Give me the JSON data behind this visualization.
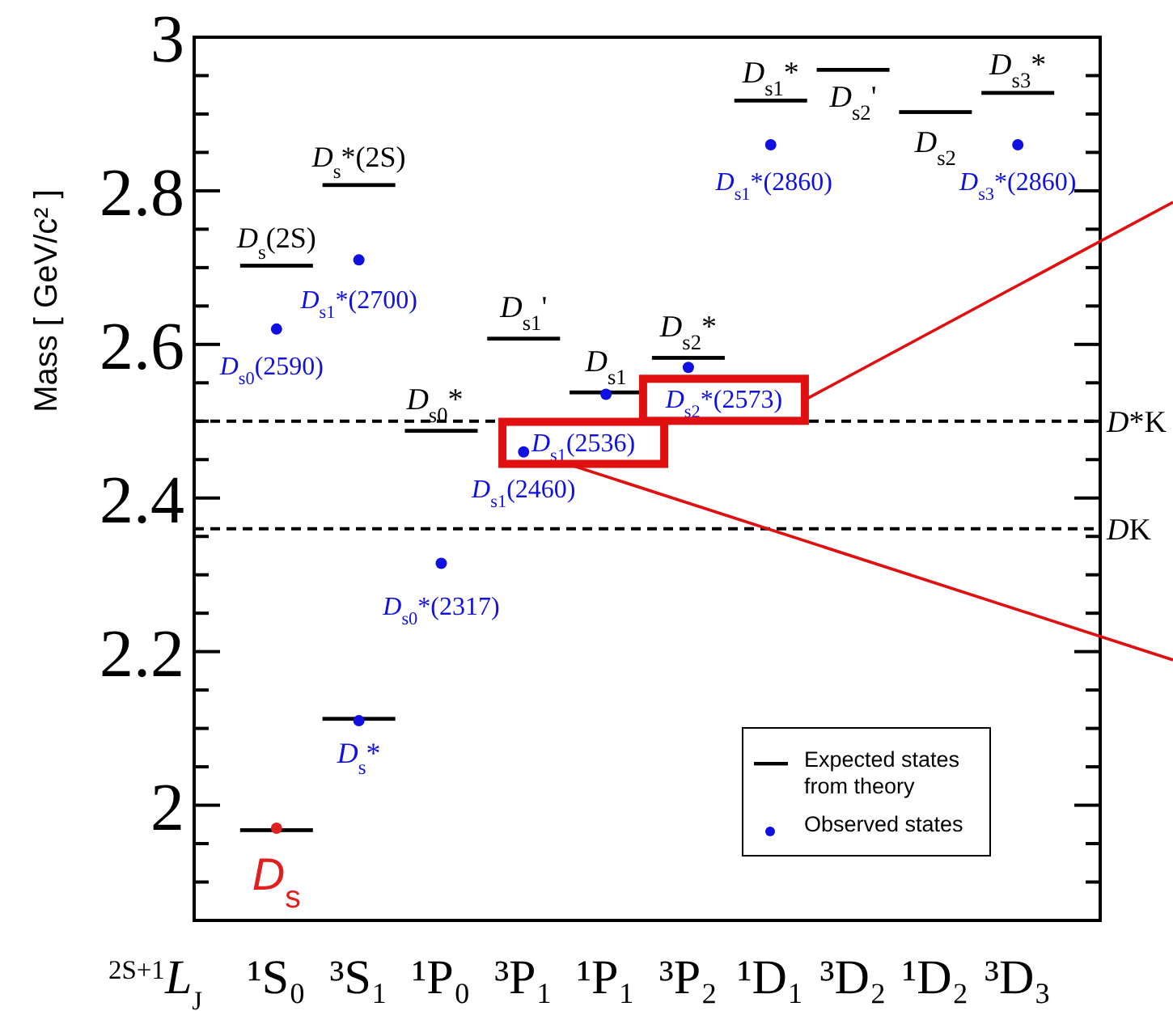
{
  "chart_data": {
    "type": "bar",
    "xlabel": "$^{2S+1}$L$_{J}$",
    "ylabel": "Mass [ GeV/c² ]",
    "categories": [
      "¹S₀",
      "³S₁",
      "¹P₀",
      "³P₁",
      "¹P₁",
      "³P₂",
      "¹D₁",
      "³D₂",
      "¹D₂",
      "³D₃"
    ],
    "ylim": [
      1.85,
      3
    ],
    "yticks": [
      {
        "value": 1.9,
        "label": null
      },
      {
        "value": 1.95,
        "label": null
      },
      2,
      {
        "value": 2.05,
        "label": null
      },
      {
        "value": 2.1,
        "label": null
      },
      {
        "value": 2.15,
        "label": null
      },
      2.2,
      {
        "value": 2.25,
        "label": null
      },
      {
        "value": 2.3,
        "label": null
      },
      {
        "value": 2.35,
        "label": null
      },
      2.4,
      {
        "value": 2.45,
        "label": null
      },
      {
        "value": 2.5,
        "label": null
      },
      {
        "value": 2.55,
        "label": null
      },
      2.6,
      {
        "value": 2.65,
        "label": null
      },
      {
        "value": 2.7,
        "label": null
      },
      {
        "value": 2.75,
        "label": null
      },
      2.8,
      {
        "value": 2.85,
        "label": null
      },
      {
        "value": 2.9,
        "label": null
      },
      {
        "value": 2.95,
        "label": null
      },
      3
    ],
    "series": [
      {
        "name": "Expected states from theory",
        "type": "bar",
        "color": "#000000",
        "base": [
          1.965,
          2.11,
          2.485,
          2.605,
          2.535,
          2.58,
          2.915,
          2.955,
          2.9,
          2.925
        ],
        "values": [
          0.005,
          0.005,
          0.005,
          0.005,
          0.005,
          0.005,
          0.005,
          0.005,
          0.005,
          0.005
        ]
      },
      {
        "type": "bar",
        "color": "#000000",
        "base": [
          2.7,
          2.805,
          null,
          null,
          null,
          null,
          null,
          null,
          null,
          null
        ],
        "values": [
          0.005,
          0.005,
          null,
          null,
          null,
          null,
          null,
          null,
          null,
          null
        ]
      },
      {
        "name": "Observed states",
        "type": "scatter",
        "marker": "circle",
        "color": "#1010e0",
        "x": [
          "¹S₀",
          "³S₁",
          "¹S₀",
          "³S₁",
          "¹P₀",
          "³P₁",
          "¹P₁",
          "³P₂",
          "¹D₁",
          "³D₃"
        ],
        "values": [
          1.97,
          2.11,
          2.62,
          2.71,
          2.315,
          2.46,
          2.535,
          2.57,
          2.86,
          2.86
        ],
        "colors": [
          "#e02020",
          "#1010e0",
          "#1010e0",
          "#1010e0",
          "#1010e0",
          "#1010e0",
          "#1010e0",
          "#1010e0",
          "#1010e0",
          "#1010e0"
        ]
      }
    ],
    "ref_lines": [
      {
        "axis": "y",
        "value": 2.5,
        "label": "D*K",
        "color": "#000000",
        "line_style": "dashed"
      },
      {
        "axis": "y",
        "value": 2.36,
        "label": "DK",
        "color": "#000000",
        "line_style": "dashed"
      }
    ],
    "annotations": [
      {
        "text": "D$_{s}$",
        "x": "¹S₀",
        "y": 1.97
      },
      {
        "text": "D$_{s}$*",
        "x": "³S₁",
        "y": 2.11
      },
      {
        "text": "D$_{s0}$(2590)",
        "x": "¹S₀",
        "y": 2.62
      },
      {
        "text": "D$_{s1}$*(2700)",
        "x": "³S₁",
        "y": 2.71
      },
      {
        "text": "D$_{s0}$*(2317)",
        "x": "¹P₀",
        "y": 2.315
      },
      {
        "text": "D$_{s1}$(2460)",
        "x": "³P₁",
        "y": 2.46
      },
      {
        "text": "D$_{s1}$(2536)",
        "x": "¹P₁",
        "y": 2.535
      },
      {
        "text": "D$_{s2}$*(2573)",
        "x": "³P₂",
        "y": 2.57
      },
      {
        "text": "D$_{s1}$*(2860)",
        "x": "¹D₁",
        "y": 2.86
      },
      {
        "text": "D$_{s3}$*(2860)",
        "x": "³D₃",
        "y": 2.86
      },
      "D$_{s}$(2S)",
      "D$_{s}$*(2S)",
      "D$_{s0}$*",
      "D$_{s1}$'",
      "D$_{s1}$",
      "D$_{s2}$*",
      "D$_{s1}$*",
      "D$_{s2}$'",
      "D$_{s2}$",
      "D$_{s3}$*"
    ],
    "legend": "bottom right"
  }
}
